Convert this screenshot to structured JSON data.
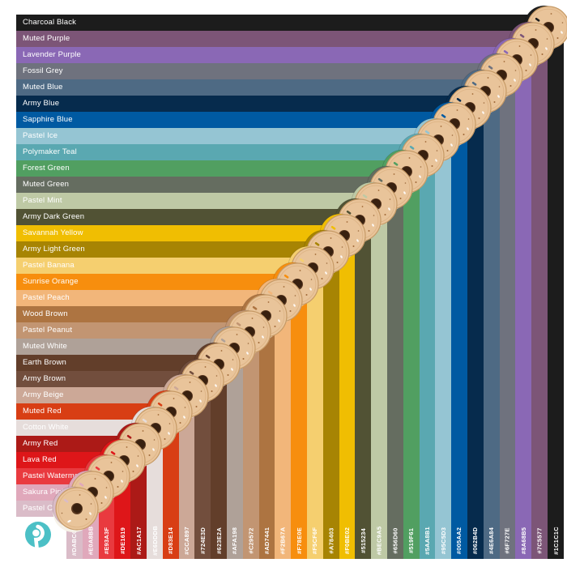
{
  "chart_data": {
    "type": "table",
    "title": "",
    "columns": [
      "color_name",
      "hex_code"
    ],
    "rows": [
      [
        "Charcoal Black",
        "#1C1C1C"
      ],
      [
        "Muted Purple",
        "#7C5577"
      ],
      [
        "Lavender Purple",
        "#8A68B5"
      ],
      [
        "Fossil Grey",
        "#6F727E"
      ],
      [
        "Muted Blue",
        "#4E6A84"
      ],
      [
        "Army Blue",
        "#062B4D"
      ],
      [
        "Sapphire Blue",
        "#005AA2"
      ],
      [
        "Pastel Ice",
        "#95C5D3"
      ],
      [
        "Polymaker Teal",
        "#5AA8B1"
      ],
      [
        "Forest Green",
        "#519F61"
      ],
      [
        "Muted Green",
        "#656D60"
      ],
      [
        "Pastel Mint",
        "#BEC9A5"
      ],
      [
        "Army Dark Green",
        "#515234"
      ],
      [
        "Savannah Yellow",
        "#F0BE02"
      ],
      [
        "Army Light Green",
        "#A78403"
      ],
      [
        "Pastel Banana",
        "#F5CF6F"
      ],
      [
        "Sunrise Orange",
        "#F78E0E"
      ],
      [
        "Pastel Peach",
        "#F2B67A"
      ],
      [
        "Wood Brown",
        "#AD7441"
      ],
      [
        "Pastel Peanut",
        "#C29572"
      ],
      [
        "Muted White",
        "#AFA198"
      ],
      [
        "Earth Brown",
        "#623E2A"
      ],
      [
        "Army Brown",
        "#724E3D"
      ],
      [
        "Army Beige",
        "#CCA897"
      ],
      [
        "Muted Red",
        "#D83E14"
      ],
      [
        "Cotton White",
        "#E6DDDB"
      ],
      [
        "Army Red",
        "#AC1A17"
      ],
      [
        "Lava Red",
        "#DE1619"
      ],
      [
        "Pastel Watermelon",
        "#E93A3F"
      ],
      [
        "Sakura Pink",
        "#E0A8BB"
      ],
      [
        "Pastel Candy",
        "#DABCC8"
      ]
    ],
    "layout": {
      "row_label_position": "left",
      "hex_label_position": "bottom-rotated-90",
      "bands": "L-shaped, stepped diagonal",
      "spool_icons_on_diagonal": true
    }
  },
  "brand": {
    "logo_teal": "#4CC0C6",
    "spool_cardboard": "#E9C49A",
    "spool_rim": "#C69A66",
    "spool_inner_ring": "#D9AE7E",
    "spool_hole_outer": "#5A3820",
    "spool_hole_inner": "#38200F",
    "spool_flange_white": "#F6F1E7",
    "label_text": "#FFFFFF"
  }
}
